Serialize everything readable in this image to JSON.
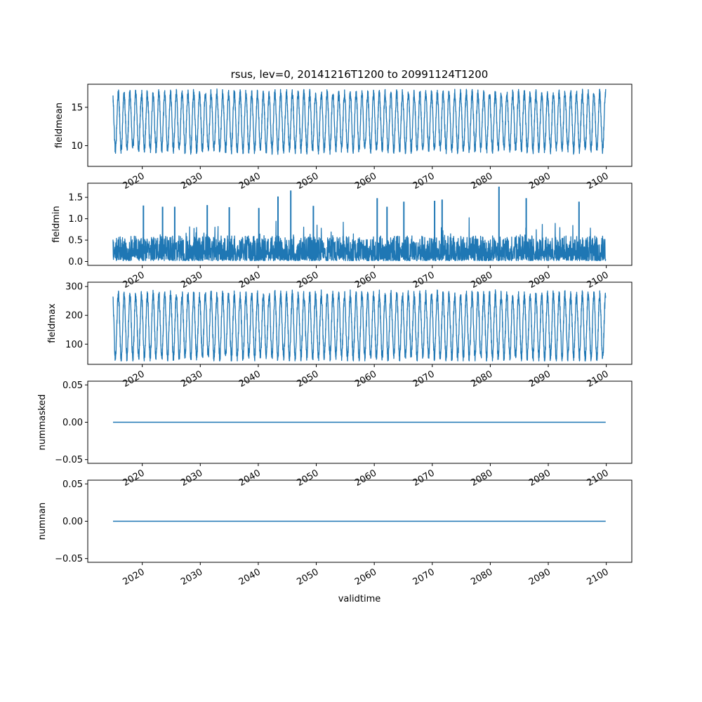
{
  "figure": {
    "title": "rsus, lev=0, 20141216T1200 to 20991124T1200",
    "xlabel": "validtime",
    "line_color": "#1f77b4"
  },
  "chart_data": [
    {
      "type": "line",
      "ylabel": "fieldmean",
      "x_range": [
        "2014-12-16T12:00",
        "2099-11-24T12:00"
      ],
      "xlim": [
        2010.6,
        2104.4
      ],
      "ylim": [
        7.3,
        18.0
      ],
      "y_ticks": [
        "10",
        "15"
      ],
      "y_tick_values": [
        10,
        15
      ],
      "x_ticks": [
        "2020",
        "2030",
        "2040",
        "2050",
        "2060",
        "2070",
        "2080",
        "2090",
        "2100"
      ],
      "x_tick_values": [
        2020,
        2030,
        2040,
        2050,
        2060,
        2070,
        2080,
        2090,
        2100
      ],
      "x_tick_labels_clipped": true,
      "series": [
        {
          "pattern": "seasonal_cycle",
          "cycles_per_year": 1,
          "typical_low": 9.5,
          "typical_high": 16.8,
          "observed_min": 7.8,
          "observed_max": 17.5
        }
      ]
    },
    {
      "type": "line",
      "ylabel": "fieldmin",
      "x_range": [
        "2014-12-16T12:00",
        "2099-11-24T12:00"
      ],
      "xlim": [
        2010.6,
        2104.4
      ],
      "ylim": [
        -0.09,
        1.83
      ],
      "y_ticks": [
        "0.0",
        "0.5",
        "1.0",
        "1.5"
      ],
      "y_tick_values": [
        0.0,
        0.5,
        1.0,
        1.5
      ],
      "x_ticks": [
        "2020",
        "2030",
        "2040",
        "2050",
        "2060",
        "2070",
        "2080",
        "2090",
        "2100"
      ],
      "x_tick_values": [
        2020,
        2030,
        2040,
        2050,
        2060,
        2070,
        2080,
        2090,
        2100
      ],
      "x_tick_labels_clipped": true,
      "series": [
        {
          "pattern": "noisy_spikes",
          "typical_low": 0.02,
          "typical_high": 0.6,
          "observed_max": 1.75,
          "peaks": [
            {
              "x": 2020.2,
              "y": 1.31
            },
            {
              "x": 2023.5,
              "y": 1.28
            },
            {
              "x": 2025.6,
              "y": 1.28
            },
            {
              "x": 2031.2,
              "y": 1.32
            },
            {
              "x": 2035.0,
              "y": 1.27
            },
            {
              "x": 2040.1,
              "y": 1.25
            },
            {
              "x": 2043.4,
              "y": 1.52
            },
            {
              "x": 2045.6,
              "y": 1.66
            },
            {
              "x": 2049.5,
              "y": 1.3
            },
            {
              "x": 2060.5,
              "y": 1.48
            },
            {
              "x": 2062.2,
              "y": 1.28
            },
            {
              "x": 2065.1,
              "y": 1.4
            },
            {
              "x": 2070.4,
              "y": 1.42
            },
            {
              "x": 2071.7,
              "y": 1.45
            },
            {
              "x": 2081.5,
              "y": 1.75
            },
            {
              "x": 2086.2,
              "y": 1.48
            },
            {
              "x": 2095.3,
              "y": 1.4
            }
          ]
        }
      ]
    },
    {
      "type": "line",
      "ylabel": "fieldmax",
      "x_range": [
        "2014-12-16T12:00",
        "2099-11-24T12:00"
      ],
      "xlim": [
        2010.6,
        2104.4
      ],
      "ylim": [
        30,
        315
      ],
      "y_ticks": [
        "100",
        "200",
        "300"
      ],
      "y_tick_values": [
        100,
        200,
        300
      ],
      "x_ticks": [
        "2020",
        "2030",
        "2040",
        "2050",
        "2060",
        "2070",
        "2080",
        "2090",
        "2100"
      ],
      "x_tick_values": [
        2020,
        2030,
        2040,
        2050,
        2060,
        2070,
        2080,
        2090,
        2100
      ],
      "x_tick_labels_clipped": true,
      "series": [
        {
          "pattern": "seasonal_cycle",
          "cycles_per_year": 1,
          "typical_low": 55,
          "typical_high": 270,
          "observed_min": 42,
          "observed_max": 302
        }
      ]
    },
    {
      "type": "line",
      "ylabel": "nummasked",
      "x_range": [
        "2014-12-16T12:00",
        "2099-11-24T12:00"
      ],
      "xlim": [
        2010.6,
        2104.4
      ],
      "ylim": [
        -0.055,
        0.055
      ],
      "y_ticks": [
        "0.05",
        "0.00",
        "−0.05"
      ],
      "y_tick_values": [
        0.05,
        0.0,
        -0.05
      ],
      "x_ticks": [
        "2020",
        "2030",
        "2040",
        "2050",
        "2060",
        "2070",
        "2080",
        "2090",
        "2100"
      ],
      "x_tick_values": [
        2020,
        2030,
        2040,
        2050,
        2060,
        2070,
        2080,
        2090,
        2100
      ],
      "x_tick_labels_clipped": true,
      "series": [
        {
          "pattern": "constant",
          "value": 0.0
        }
      ]
    },
    {
      "type": "line",
      "ylabel": "numnan",
      "x_range": [
        "2014-12-16T12:00",
        "2099-11-24T12:00"
      ],
      "xlim": [
        2010.6,
        2104.4
      ],
      "ylim": [
        -0.055,
        0.055
      ],
      "y_ticks": [
        "0.05",
        "0.00",
        "−0.05"
      ],
      "y_tick_values": [
        0.05,
        0.0,
        -0.05
      ],
      "x_ticks": [
        "2020",
        "2030",
        "2040",
        "2050",
        "2060",
        "2070",
        "2080",
        "2090",
        "2100"
      ],
      "x_tick_values": [
        2020,
        2030,
        2040,
        2050,
        2060,
        2070,
        2080,
        2090,
        2100
      ],
      "x_tick_labels_clipped": false,
      "series": [
        {
          "pattern": "constant",
          "value": 0.0
        }
      ]
    }
  ]
}
